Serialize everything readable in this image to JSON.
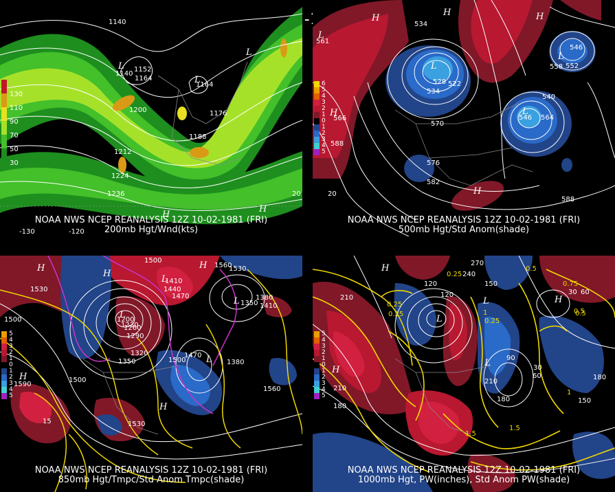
{
  "main_title": "12Z 10-02-1981 (FRI)",
  "panels": [
    {
      "id": "tl",
      "caption_line1": "NOAA NWS NCEP REANALYSIS 12Z 10-02-1981 (FRI)",
      "caption_line2": "200mb Hgt/Wnd(kts)",
      "legend": [
        "130",
        "110",
        "90",
        "70",
        "50",
        "30"
      ],
      "legend_colors": [
        "#c0182a",
        "#d99a16",
        "#e8e020",
        "#a6e12a",
        "#43c02a",
        "#1e8e1e"
      ],
      "contour_labels": [
        "1140",
        "1152",
        "1164",
        "1176",
        "1188",
        "1200",
        "1212",
        "1224",
        "1236",
        "1140",
        "1164",
        "-130",
        "-120",
        "20"
      ],
      "pressure_labels": [
        "L",
        "L",
        "L",
        "H",
        "H"
      ]
    },
    {
      "id": "tr",
      "caption_line1": "NOAA NWS NCEP REANALYSIS 12Z 10-02-1981 (FRI)",
      "caption_line2": "500mb Hgt/Std Anom(shade)",
      "legend": [
        "6",
        "5",
        "4",
        "3",
        "2",
        "1",
        "0",
        "1",
        "2",
        "3",
        "4",
        "5"
      ],
      "legend_colors": [
        "#f0d800",
        "#e8a000",
        "#e46000",
        "#d22040",
        "#b81830",
        "#801828",
        "#000000",
        "#224488",
        "#2a6ac8",
        "#3aa0e0",
        "#40d0d0",
        "#a020c0"
      ],
      "contour_labels": [
        "534",
        "546",
        "552",
        "528",
        "522",
        "540",
        "534",
        "570",
        "588",
        "576",
        "582",
        "588",
        "558",
        "546",
        "564",
        "561",
        "566",
        "20"
      ],
      "pressure_labels": [
        "H",
        "L",
        "L",
        "L",
        "H",
        "L",
        "H",
        "H",
        "H"
      ]
    },
    {
      "id": "bl",
      "caption_line1": "NOAA NWS NCEP REANALYSIS 12Z 10-02-1981 (FRI)",
      "caption_line2": "850mb Hgt/Tmpc/Std Anom Tmpc(shade)",
      "legend": [
        "5",
        "4",
        "3",
        "2",
        "1",
        "0",
        "1",
        "2",
        "3",
        "4",
        "5"
      ],
      "legend_colors": [
        "#e8a000",
        "#e46000",
        "#d22040",
        "#b81830",
        "#801828",
        "#000000",
        "#224488",
        "#2a6ac8",
        "#3aa0e0",
        "#40d0d0",
        "#a020c0"
      ],
      "contour_labels": [
        "1500",
        "1530",
        "1560",
        "1530",
        "1500",
        "1590",
        "1500",
        "1410",
        "1440",
        "1470",
        "1380",
        "1350",
        "1410",
        "1320",
        "1290",
        "1260",
        "1230",
        "1200",
        "1350",
        "1380",
        "1470",
        "1500",
        "1560",
        "1530",
        "15"
      ],
      "pressure_labels": [
        "H",
        "H",
        "L",
        "L",
        "L",
        "H",
        "H",
        "L",
        "H"
      ]
    },
    {
      "id": "br",
      "caption_line1": "NOAA NWS NCEP REANALYSIS 12Z 10-02-1981 (FRI)",
      "caption_line2": "1000mb Hgt, PW(inches), Std Anom PW(shade)",
      "legend": [
        "5",
        "4",
        "3",
        "2",
        "1",
        "0",
        "1",
        "2",
        "3",
        "4",
        "5"
      ],
      "legend_colors": [
        "#e8a000",
        "#e46000",
        "#d22040",
        "#b81830",
        "#801828",
        "#000000",
        "#224488",
        "#2a6ac8",
        "#3aa0e0",
        "#40d0d0",
        "#a020c0"
      ],
      "contour_labels": [
        "270",
        "240",
        "120",
        "150",
        "210",
        "0.5",
        "0.25",
        "0.75",
        "0.25",
        "30",
        "60",
        "0.5",
        "0.25",
        "1",
        "0.25",
        "90",
        "120",
        "30",
        "60",
        "210",
        "180",
        "150",
        "180",
        "1.5",
        "1.5",
        "210",
        "180",
        "0.5",
        "1"
      ],
      "pressure_labels": [
        "H",
        "L",
        "L",
        "H",
        "L",
        "H"
      ]
    }
  ]
}
